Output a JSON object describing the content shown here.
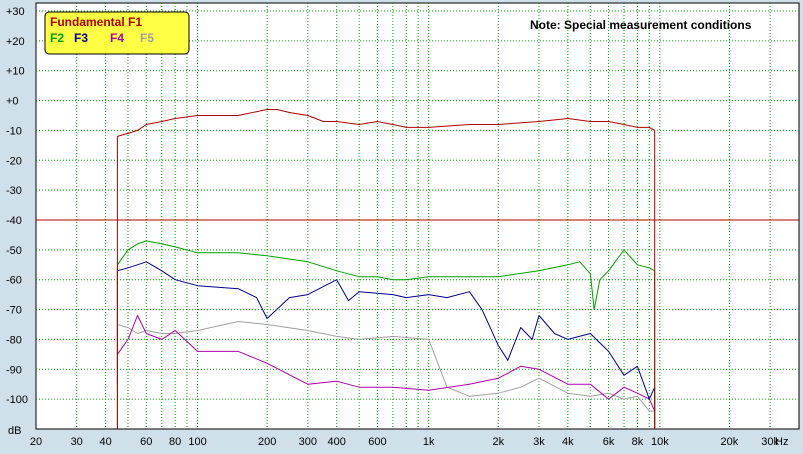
{
  "chart_data": {
    "type": "line",
    "title": "",
    "note": "Note: Special measurement conditions",
    "xlabel": "Hz",
    "ylabel": "dB",
    "xscale": "log",
    "xlim": [
      20,
      40000
    ],
    "ylim": [
      -110,
      30
    ],
    "grid": true,
    "legend_position": "top-left",
    "x_ticks": [
      {
        "v": 20,
        "label": "20"
      },
      {
        "v": 30,
        "label": "30"
      },
      {
        "v": 40,
        "label": "40"
      },
      {
        "v": 60,
        "label": "60"
      },
      {
        "v": 80,
        "label": "80"
      },
      {
        "v": 100,
        "label": "100"
      },
      {
        "v": 200,
        "label": "200"
      },
      {
        "v": 300,
        "label": "300"
      },
      {
        "v": 400,
        "label": "400"
      },
      {
        "v": 600,
        "label": "600"
      },
      {
        "v": 1000,
        "label": "1k"
      },
      {
        "v": 2000,
        "label": "2k"
      },
      {
        "v": 3000,
        "label": "3k"
      },
      {
        "v": 4000,
        "label": "4k"
      },
      {
        "v": 6000,
        "label": "6k"
      },
      {
        "v": 8000,
        "label": "8k"
      },
      {
        "v": 10000,
        "label": "10k"
      },
      {
        "v": 20000,
        "label": "20k"
      },
      {
        "v": 30000,
        "label": "30k"
      }
    ],
    "x_minor_grid": [
      50,
      70,
      90,
      500,
      700,
      800,
      900,
      5000,
      7000,
      9000
    ],
    "y_ticks": [
      {
        "v": 30,
        "label": "+30"
      },
      {
        "v": 20,
        "label": "+20"
      },
      {
        "v": 10,
        "label": "+10"
      },
      {
        "v": 0,
        "label": "+0"
      },
      {
        "v": -10,
        "label": "-10"
      },
      {
        "v": -20,
        "label": "-20"
      },
      {
        "v": -30,
        "label": "-30"
      },
      {
        "v": -40,
        "label": "-40"
      },
      {
        "v": -50,
        "label": "-50"
      },
      {
        "v": -60,
        "label": "-60"
      },
      {
        "v": -70,
        "label": "-70"
      },
      {
        "v": -80,
        "label": "-80"
      },
      {
        "v": -90,
        "label": "-90"
      },
      {
        "v": -100,
        "label": "-100"
      }
    ],
    "reference_line": {
      "y": -40,
      "color": "#b00000"
    },
    "legend": [
      {
        "label": "Fundamental F1",
        "color": "#b00000"
      },
      {
        "label": "F2",
        "color": "#00a000"
      },
      {
        "label": "F3",
        "color": "#000090"
      },
      {
        "label": "F4",
        "color": "#b000b0"
      },
      {
        "label": "F5",
        "color": "#a0a0a0"
      }
    ],
    "series": [
      {
        "name": "Fundamental F1",
        "color": "#b00000",
        "points": [
          [
            45,
            -110
          ],
          [
            45,
            -12
          ],
          [
            50,
            -11
          ],
          [
            55,
            -10
          ],
          [
            60,
            -8
          ],
          [
            70,
            -7
          ],
          [
            80,
            -6
          ],
          [
            100,
            -5
          ],
          [
            150,
            -5
          ],
          [
            200,
            -3
          ],
          [
            220,
            -3
          ],
          [
            250,
            -4
          ],
          [
            300,
            -5
          ],
          [
            350,
            -7
          ],
          [
            400,
            -7
          ],
          [
            500,
            -8
          ],
          [
            600,
            -7
          ],
          [
            700,
            -8
          ],
          [
            800,
            -9
          ],
          [
            1000,
            -9
          ],
          [
            1500,
            -8
          ],
          [
            2000,
            -8
          ],
          [
            3000,
            -7
          ],
          [
            4000,
            -6
          ],
          [
            5000,
            -7
          ],
          [
            6000,
            -7
          ],
          [
            7000,
            -8
          ],
          [
            8000,
            -9
          ],
          [
            9000,
            -9
          ],
          [
            9500,
            -10
          ],
          [
            9500,
            -110
          ]
        ]
      },
      {
        "name": "F2",
        "color": "#00a000",
        "points": [
          [
            45,
            -110
          ],
          [
            45,
            -55
          ],
          [
            50,
            -50
          ],
          [
            55,
            -48
          ],
          [
            60,
            -47
          ],
          [
            70,
            -48
          ],
          [
            80,
            -49
          ],
          [
            100,
            -51
          ],
          [
            150,
            -51
          ],
          [
            200,
            -52
          ],
          [
            300,
            -54
          ],
          [
            400,
            -57
          ],
          [
            500,
            -59
          ],
          [
            600,
            -59
          ],
          [
            700,
            -60
          ],
          [
            800,
            -60
          ],
          [
            1000,
            -59
          ],
          [
            1500,
            -59
          ],
          [
            2000,
            -59
          ],
          [
            3000,
            -57
          ],
          [
            4000,
            -55
          ],
          [
            4500,
            -54
          ],
          [
            5000,
            -58
          ],
          [
            5200,
            -70
          ],
          [
            5500,
            -60
          ],
          [
            6000,
            -57
          ],
          [
            7000,
            -50
          ],
          [
            8000,
            -55
          ],
          [
            9000,
            -56
          ],
          [
            9500,
            -57
          ],
          [
            9500,
            -110
          ]
        ]
      },
      {
        "name": "F3",
        "color": "#000090",
        "points": [
          [
            45,
            -95
          ],
          [
            45,
            -57
          ],
          [
            50,
            -56
          ],
          [
            55,
            -55
          ],
          [
            60,
            -54
          ],
          [
            70,
            -57
          ],
          [
            80,
            -60
          ],
          [
            100,
            -62
          ],
          [
            150,
            -63
          ],
          [
            180,
            -66
          ],
          [
            200,
            -73
          ],
          [
            250,
            -66
          ],
          [
            300,
            -65
          ],
          [
            400,
            -60
          ],
          [
            450,
            -67
          ],
          [
            500,
            -64
          ],
          [
            700,
            -65
          ],
          [
            800,
            -66
          ],
          [
            1000,
            -65
          ],
          [
            1200,
            -66
          ],
          [
            1500,
            -64
          ],
          [
            1700,
            -70
          ],
          [
            2000,
            -82
          ],
          [
            2200,
            -87
          ],
          [
            2500,
            -76
          ],
          [
            2800,
            -80
          ],
          [
            3000,
            -72
          ],
          [
            3500,
            -78
          ],
          [
            4000,
            -80
          ],
          [
            5000,
            -78
          ],
          [
            6000,
            -84
          ],
          [
            7000,
            -92
          ],
          [
            8000,
            -89
          ],
          [
            9000,
            -100
          ],
          [
            9500,
            -96
          ],
          [
            9500,
            -110
          ]
        ]
      },
      {
        "name": "F4",
        "color": "#b000b0",
        "points": [
          [
            45,
            -85
          ],
          [
            50,
            -80
          ],
          [
            55,
            -72
          ],
          [
            60,
            -78
          ],
          [
            70,
            -80
          ],
          [
            80,
            -77
          ],
          [
            100,
            -84
          ],
          [
            150,
            -84
          ],
          [
            200,
            -88
          ],
          [
            300,
            -95
          ],
          [
            400,
            -94
          ],
          [
            500,
            -96
          ],
          [
            700,
            -96
          ],
          [
            1000,
            -97
          ],
          [
            1500,
            -95
          ],
          [
            2000,
            -93
          ],
          [
            2500,
            -89
          ],
          [
            3000,
            -90
          ],
          [
            4000,
            -95
          ],
          [
            5000,
            -95
          ],
          [
            6000,
            -100
          ],
          [
            7000,
            -96
          ],
          [
            8000,
            -98
          ],
          [
            9000,
            -100
          ],
          [
            9500,
            -104
          ]
        ]
      },
      {
        "name": "F5",
        "color": "#a0a0a0",
        "points": [
          [
            45,
            -75
          ],
          [
            50,
            -76
          ],
          [
            55,
            -78
          ],
          [
            60,
            -77
          ],
          [
            70,
            -78
          ],
          [
            80,
            -78
          ],
          [
            100,
            -77
          ],
          [
            150,
            -74
          ],
          [
            200,
            -75
          ],
          [
            300,
            -77
          ],
          [
            400,
            -79
          ],
          [
            500,
            -80
          ],
          [
            700,
            -79
          ],
          [
            1000,
            -80
          ],
          [
            1200,
            -96
          ],
          [
            1500,
            -99
          ],
          [
            2000,
            -98
          ],
          [
            2500,
            -96
          ],
          [
            3000,
            -93
          ],
          [
            4000,
            -98
          ],
          [
            5000,
            -99
          ],
          [
            6000,
            -98
          ],
          [
            7000,
            -100
          ],
          [
            8000,
            -99
          ],
          [
            9000,
            -104
          ],
          [
            9500,
            -104
          ]
        ]
      }
    ]
  }
}
